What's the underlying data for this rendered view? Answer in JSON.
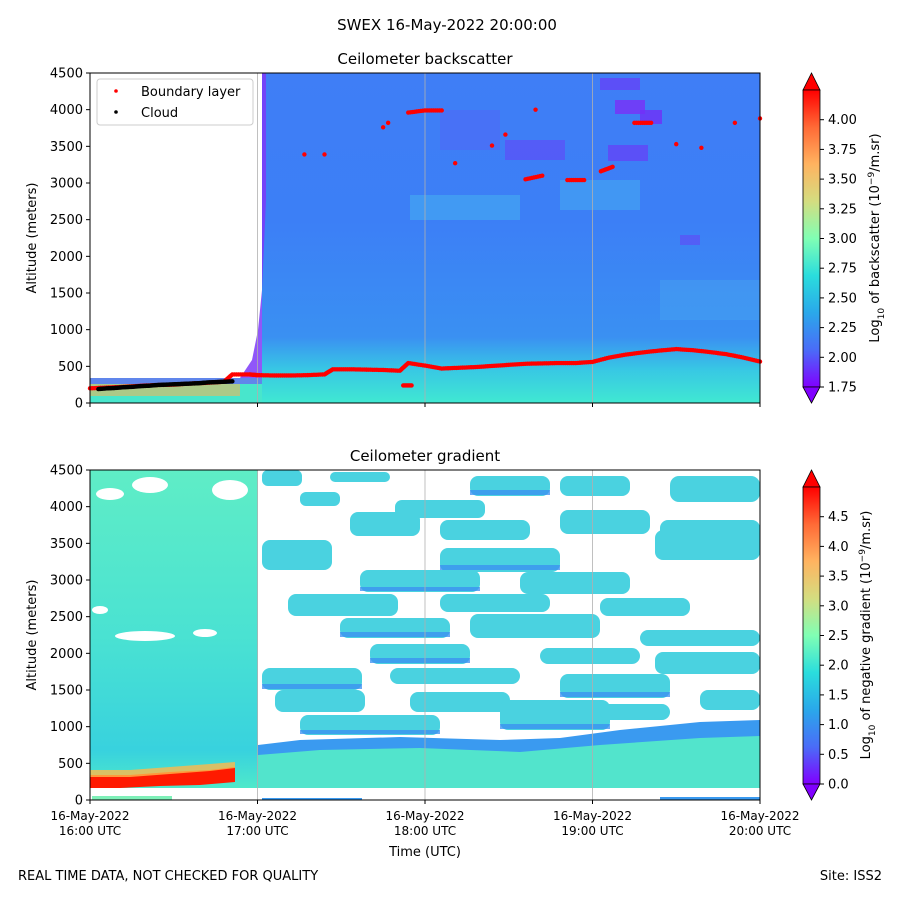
{
  "page": {
    "suptitle": "SWEX 16-May-2022 20:00:00",
    "footer_left": "REAL TIME DATA, NOT CHECKED FOR QUALITY",
    "footer_right": "Site: ISS2"
  },
  "chart_data": [
    {
      "type": "heatmap",
      "title": "Ceilometer backscatter",
      "xlabel": "",
      "ylabel": "Altitude (meters)",
      "xlim": [
        "16-May-2022 16:00 UTC",
        "16-May-2022 20:00 UTC"
      ],
      "ylim": [
        0,
        4500
      ],
      "yticks": [
        0,
        500,
        1000,
        1500,
        2000,
        2500,
        3000,
        3500,
        4000,
        4500
      ],
      "grid": "vertical lines at each hour",
      "colorbar": {
        "label": "Log10 of backscatter (10^-9/m.sr)",
        "range": [
          1.75,
          4.25
        ],
        "ticks": [
          "1.75",
          "2.00",
          "2.25",
          "2.50",
          "2.75",
          "3.00",
          "3.25",
          "3.50",
          "3.75",
          "4.00"
        ],
        "extend": "both"
      },
      "legend": {
        "placement": "upper-left",
        "entries": [
          {
            "label": "Boundary layer",
            "color": "#ff0000"
          },
          {
            "label": "Cloud",
            "color": "#000000"
          }
        ]
      },
      "series": [
        {
          "name": "Boundary layer",
          "color": "#ff0000",
          "points": [
            [
              0.0,
              200
            ],
            [
              0.1,
              210
            ],
            [
              0.2,
              220
            ],
            [
              0.3,
              235
            ],
            [
              0.4,
              245
            ],
            [
              0.5,
              250
            ],
            [
              0.6,
              265
            ],
            [
              0.7,
              275
            ],
            [
              0.8,
              290
            ],
            [
              0.85,
              390
            ],
            [
              0.95,
              390
            ],
            [
              1.0,
              380
            ],
            [
              1.1,
              375
            ],
            [
              1.2,
              375
            ],
            [
              1.3,
              380
            ],
            [
              1.4,
              390
            ],
            [
              1.45,
              460
            ],
            [
              1.55,
              460
            ],
            [
              1.65,
              455
            ],
            [
              1.75,
              450
            ],
            [
              1.85,
              440
            ],
            [
              1.9,
              545
            ],
            [
              2.0,
              510
            ],
            [
              2.1,
              470
            ],
            [
              2.2,
              480
            ],
            [
              2.3,
              490
            ],
            [
              2.4,
              505
            ],
            [
              2.5,
              520
            ],
            [
              2.6,
              535
            ],
            [
              2.7,
              540
            ],
            [
              2.8,
              545
            ],
            [
              2.9,
              545
            ],
            [
              3.0,
              560
            ],
            [
              3.1,
              620
            ],
            [
              3.2,
              660
            ],
            [
              3.3,
              690
            ],
            [
              3.4,
              715
            ],
            [
              3.5,
              735
            ],
            [
              3.6,
              720
            ],
            [
              3.7,
              695
            ],
            [
              3.8,
              665
            ],
            [
              3.9,
              620
            ],
            [
              4.0,
              565
            ],
            [
              1.87,
              240
            ],
            [
              1.92,
              240
            ],
            [
              1.28,
              3390
            ],
            [
              1.4,
              3390
            ],
            [
              1.78,
              3820
            ],
            [
              1.9,
              3960
            ],
            [
              2.0,
              3990
            ],
            [
              2.1,
              3990
            ],
            [
              2.18,
              3270
            ],
            [
              2.4,
              3510
            ],
            [
              2.48,
              3660
            ],
            [
              2.6,
              3050
            ],
            [
              2.7,
              3100
            ],
            [
              2.85,
              3040
            ],
            [
              2.95,
              3040
            ],
            [
              3.05,
              3160
            ],
            [
              3.12,
              3220
            ],
            [
              3.25,
              3820
            ],
            [
              3.35,
              3820
            ],
            [
              3.5,
              3530
            ],
            [
              3.65,
              3480
            ],
            [
              3.85,
              3820
            ],
            [
              4.0,
              3880
            ],
            [
              2.66,
              4000
            ],
            [
              1.75,
              3760
            ]
          ]
        },
        {
          "name": "Cloud",
          "color": "#000000",
          "points": [
            [
              0.05,
              190
            ],
            [
              0.1,
              200
            ],
            [
              0.15,
              205
            ],
            [
              0.2,
              215
            ],
            [
              0.25,
              220
            ],
            [
              0.3,
              230
            ],
            [
              0.35,
              235
            ],
            [
              0.4,
              245
            ],
            [
              0.45,
              250
            ],
            [
              0.5,
              255
            ],
            [
              0.55,
              260
            ],
            [
              0.6,
              265
            ],
            [
              0.65,
              270
            ],
            [
              0.7,
              280
            ],
            [
              0.75,
              285
            ],
            [
              0.8,
              290
            ],
            [
              0.85,
              295
            ]
          ]
        }
      ]
    },
    {
      "type": "heatmap",
      "title": "Ceilometer gradient",
      "xlabel": "Time (UTC)",
      "ylabel": "Altitude (meters)",
      "xlim": [
        "16-May-2022 16:00 UTC",
        "16-May-2022 20:00 UTC"
      ],
      "xticks": [
        [
          "16-May-2022",
          "16:00 UTC"
        ],
        [
          "16-May-2022",
          "17:00 UTC"
        ],
        [
          "16-May-2022",
          "18:00 UTC"
        ],
        [
          "16-May-2022",
          "19:00 UTC"
        ],
        [
          "16-May-2022",
          "20:00 UTC"
        ]
      ],
      "ylim": [
        0,
        4500
      ],
      "yticks": [
        0,
        500,
        1000,
        1500,
        2000,
        2500,
        3000,
        3500,
        4000,
        4500
      ],
      "grid": "vertical lines at each hour",
      "colorbar": {
        "label": "Log10 of negative gradient (10^-9/m.sr)",
        "range": [
          0.0,
          5.0
        ],
        "ticks": [
          "0.0",
          "0.5",
          "1.0",
          "1.5",
          "2.0",
          "2.5",
          "3.0",
          "3.5",
          "4.0",
          "4.5"
        ],
        "extend": "both"
      }
    }
  ]
}
